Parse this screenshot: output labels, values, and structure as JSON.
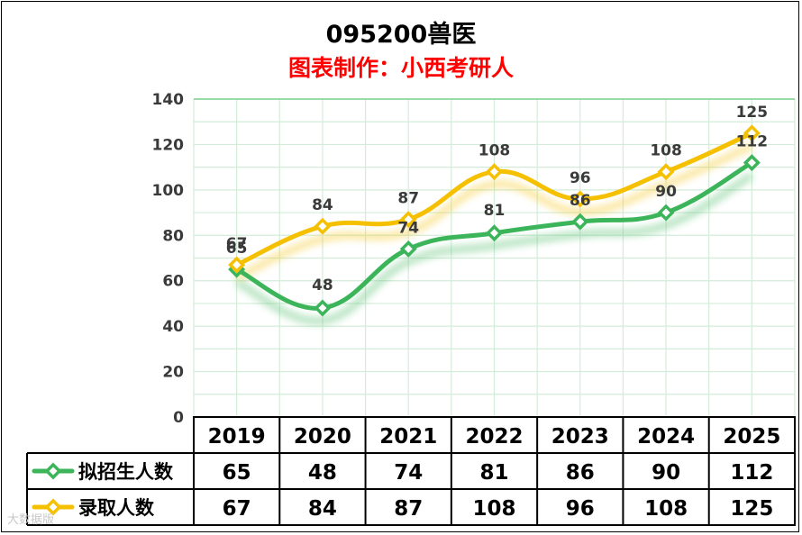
{
  "title": "095200兽医",
  "subtitle": "图表制作：小西考研人",
  "watermark": "大数据版",
  "chart_data": {
    "type": "line",
    "title": "095200兽医",
    "subtitle": "图表制作：小西考研人",
    "categories": [
      "2019",
      "2020",
      "2021",
      "2022",
      "2023",
      "2024",
      "2025"
    ],
    "ylim": [
      0,
      140
    ],
    "yticks": [
      0,
      20,
      40,
      60,
      80,
      100,
      120,
      140
    ],
    "grid": true,
    "series": [
      {
        "name": "拟招生人数",
        "values": [
          65,
          48,
          74,
          81,
          86,
          90,
          112
        ],
        "color": "#3cb55a"
      },
      {
        "name": "录取人数",
        "values": [
          67,
          84,
          87,
          108,
          96,
          108,
          125
        ],
        "color": "#f5c000"
      }
    ],
    "data_table": true
  }
}
